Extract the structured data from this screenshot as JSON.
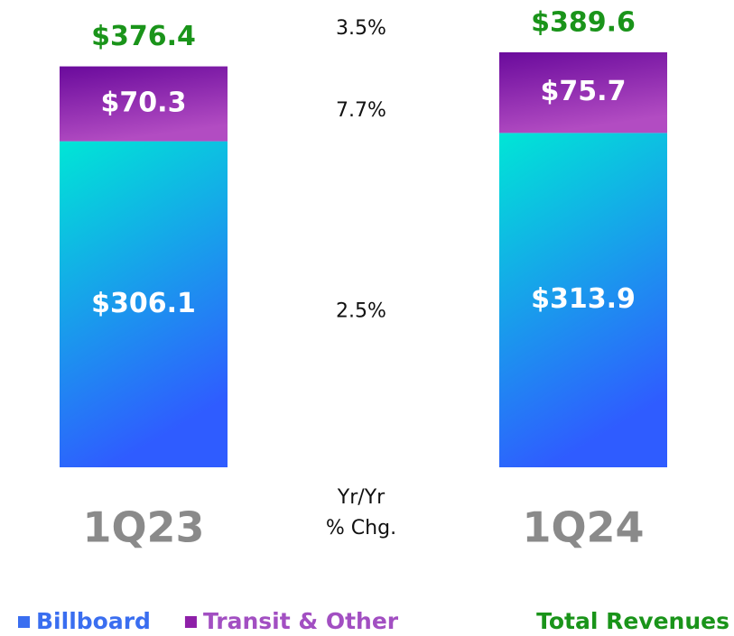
{
  "chart_data": {
    "type": "bar",
    "stacked": true,
    "categories": [
      "1Q23",
      "1Q24"
    ],
    "series": [
      {
        "name": "Billboard",
        "color": "#3a6ef0",
        "gradient": [
          "#00e6d6",
          "#2f5cff"
        ],
        "values": [
          306.1,
          313.9
        ],
        "value_labels": [
          "$306.1",
          "$313.9"
        ],
        "change": 2.5,
        "change_label": "2.5%"
      },
      {
        "name": "Transit & Other",
        "color": "#8e1fa8",
        "label_color": "#a24fc2",
        "gradient": [
          "#6a0a9c",
          "#b24cc2"
        ],
        "values": [
          70.3,
          75.7
        ],
        "value_labels": [
          "$70.3",
          "$75.7"
        ],
        "change": 7.7,
        "change_label": "7.7%"
      }
    ],
    "totals": {
      "name": "Total Revenues",
      "color": "#1a941a",
      "values": [
        376.4,
        389.6
      ],
      "value_labels": [
        "$376.4",
        "$389.6"
      ],
      "change": 3.5,
      "change_label": "3.5%"
    },
    "change_title": [
      "Yr/Yr",
      "% Chg."
    ]
  }
}
